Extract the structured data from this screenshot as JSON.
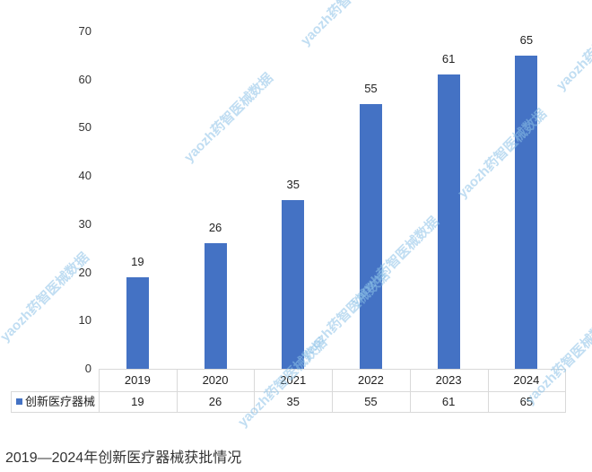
{
  "chart_data": {
    "type": "bar",
    "title": "",
    "xlabel": "",
    "ylabel": "",
    "categories": [
      "2019",
      "2020",
      "2021",
      "2022",
      "2023",
      "2024"
    ],
    "series": [
      {
        "name": "创新医疗器械",
        "values": [
          19,
          26,
          35,
          55,
          61,
          65
        ],
        "color": "#4472c4"
      }
    ],
    "ylim": [
      0,
      70
    ],
    "yticks": [
      0,
      10,
      20,
      30,
      40,
      50,
      60,
      70
    ],
    "ytick_labels": [
      "0",
      "10",
      "20",
      "30",
      "40",
      "50",
      "60",
      "70"
    ],
    "data_labels": [
      "19",
      "26",
      "35",
      "55",
      "61",
      "65"
    ],
    "grid": false,
    "legend": {
      "entries": [
        "创新医疗器械"
      ],
      "position": "data-table"
    },
    "data_table": {
      "header": [
        "2019",
        "2020",
        "2021",
        "2022",
        "2023",
        "2024"
      ],
      "rows": [
        {
          "label": "创新医疗器械",
          "values": [
            "19",
            "26",
            "35",
            "55",
            "61",
            "65"
          ]
        }
      ]
    }
  },
  "caption": "2019—2024年创新医疗器械获批情况",
  "watermark": "yaozh药智医械数据"
}
